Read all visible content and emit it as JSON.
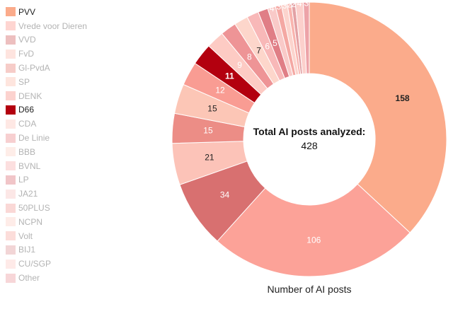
{
  "chart_data": {
    "type": "pie",
    "donut": true,
    "categories": [
      "PVV",
      "Vrede voor Dieren",
      "VVD",
      "FvD",
      "Gl-PvdA",
      "SP",
      "DENK",
      "D66",
      "CDA",
      "De Linie",
      "BBB",
      "BVNL",
      "LP",
      "JA21",
      "50PLUS",
      "NCPN",
      "Volt",
      "BIJ1",
      "CU/SGP",
      "Other"
    ],
    "values": [
      158,
      106,
      34,
      21,
      15,
      15,
      12,
      11,
      9,
      8,
      7,
      6,
      5,
      4,
      3,
      3,
      2,
      2,
      4,
      3
    ],
    "visible_labels": [
      "158",
      "106",
      "34",
      "21",
      "15",
      "15",
      "12",
      "11",
      "9",
      "8",
      "7",
      "6",
      "5",
      "4",
      "3",
      "3",
      "2",
      "2",
      "4",
      "3"
    ],
    "colors": [
      "#fbab8b",
      "#fca298",
      "#d87070",
      "#fcc3b8",
      "#ec8d86",
      "#fcc6b6",
      "#f99c93",
      "#b3000f",
      "#fdcbc4",
      "#ee9496",
      "#fdd6cb",
      "#f8b8b8",
      "#e07e86",
      "#f9cac8",
      "#f4a8a3",
      "#fcd4cd",
      "#f9b4ae",
      "#e3a1a4",
      "#fcd0cc",
      "#eda3a8"
    ],
    "highlighted": [
      "PVV",
      "D66"
    ],
    "center_title": "Total AI posts analyzed:",
    "center_value": "428",
    "xlabel": "Number of AI posts",
    "legend_position": "left"
  }
}
